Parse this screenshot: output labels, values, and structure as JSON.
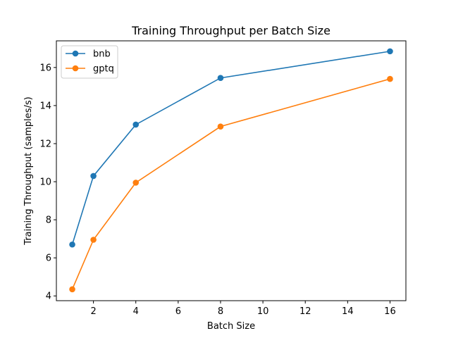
{
  "chart_data": {
    "type": "line",
    "title": "Training Throughput per Batch Size",
    "xlabel": "Batch Size",
    "ylabel": "Training Throughput (samples/s)",
    "x": [
      1,
      2,
      4,
      8,
      16
    ],
    "xlim": [
      0.25,
      16.75
    ],
    "ylim": [
      3.75,
      17.4
    ],
    "xticks": [
      2,
      4,
      6,
      8,
      10,
      12,
      14,
      16
    ],
    "yticks": [
      4,
      6,
      8,
      10,
      12,
      14,
      16
    ],
    "grid": false,
    "legend_position": "top-left",
    "series": [
      {
        "name": "bnb",
        "color": "#1f77b4",
        "values": [
          6.7,
          10.3,
          13.0,
          15.45,
          16.85
        ]
      },
      {
        "name": "gptq",
        "color": "#ff7f0e",
        "values": [
          4.35,
          6.95,
          9.95,
          12.9,
          15.4
        ]
      }
    ]
  }
}
